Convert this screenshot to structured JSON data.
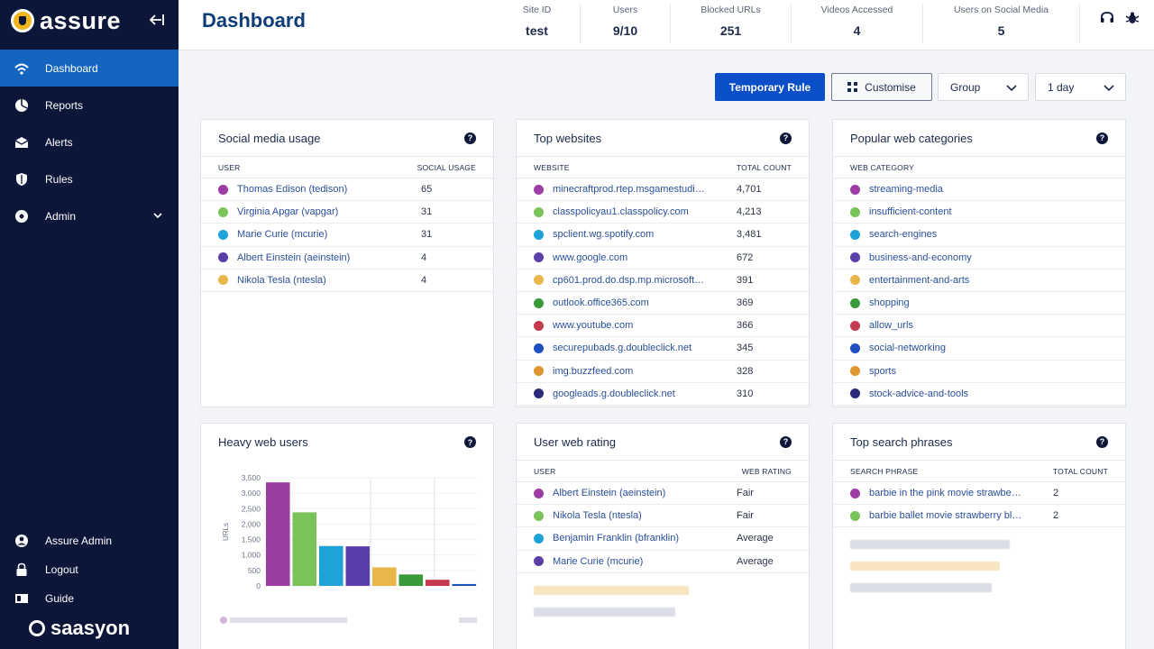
{
  "brand": {
    "name": "assure"
  },
  "footer_brand": "saasyon",
  "sidebar": {
    "items": [
      {
        "label": "Dashboard",
        "icon": "dashboard-icon"
      },
      {
        "label": "Reports",
        "icon": "pie-chart-icon"
      },
      {
        "label": "Alerts",
        "icon": "mail-icon"
      },
      {
        "label": "Rules",
        "icon": "shield-icon"
      },
      {
        "label": "Admin",
        "icon": "gear-icon"
      }
    ],
    "bottom": [
      {
        "label": "Assure Admin",
        "icon": "user-icon"
      },
      {
        "label": "Logout",
        "icon": "lock-icon"
      },
      {
        "label": "Guide",
        "icon": "book-icon"
      }
    ]
  },
  "header": {
    "title": "Dashboard",
    "stats": [
      {
        "label": "Site ID",
        "value": "test"
      },
      {
        "label": "Users",
        "value": "9/10"
      },
      {
        "label": "Blocked URLs",
        "value": "251"
      },
      {
        "label": "Videos Accessed",
        "value": "4"
      },
      {
        "label": "Users on Social Media",
        "value": "5"
      }
    ]
  },
  "controls": {
    "temporary_rule": "Temporary Rule",
    "customise": "Customise",
    "group": "Group",
    "period": "1 day"
  },
  "colors": {
    "purple": "#9b3da3",
    "green": "#7bc25a",
    "cyan": "#1ea3d9",
    "indigo": "#5b3fa8",
    "yellow": "#e8b64a",
    "darkgreen": "#3a9a3a",
    "red": "#c43a4e",
    "blue": "#1f4fc0",
    "orange": "#e0962e",
    "navy": "#2a2a7a"
  },
  "social": {
    "title": "Social media usage",
    "col1": "USER",
    "col2": "SOCIAL USAGE",
    "rows": [
      {
        "label": "Thomas Edison (tedison)",
        "value": "65",
        "color": "#9b3da3"
      },
      {
        "label": "Virginia Apgar (vapgar)",
        "value": "31",
        "color": "#7bc25a"
      },
      {
        "label": "Marie Curie (mcurie)",
        "value": "31",
        "color": "#1ea3d9"
      },
      {
        "label": "Albert Einstein (aeinstein)",
        "value": "4",
        "color": "#5b3fa8"
      },
      {
        "label": "Nikola Tesla (ntesla)",
        "value": "4",
        "color": "#e8b64a"
      }
    ]
  },
  "websites": {
    "title": "Top websites",
    "col1": "WEBSITE",
    "col2": "TOTAL COUNT",
    "rows": [
      {
        "label": "minecraftprod.rtep.msgamestudi…",
        "value": "4,701",
        "color": "#9b3da3"
      },
      {
        "label": "classpolicyau1.classpolicy.com",
        "value": "4,213",
        "color": "#7bc25a"
      },
      {
        "label": "spclient.wg.spotify.com",
        "value": "3,481",
        "color": "#1ea3d9"
      },
      {
        "label": "www.google.com",
        "value": "672",
        "color": "#5b3fa8"
      },
      {
        "label": "cp601.prod.do.dsp.mp.microsoft…",
        "value": "391",
        "color": "#e8b64a"
      },
      {
        "label": "outlook.office365.com",
        "value": "369",
        "color": "#3a9a3a"
      },
      {
        "label": "www.youtube.com",
        "value": "366",
        "color": "#c43a4e"
      },
      {
        "label": "securepubads.g.doubleclick.net",
        "value": "345",
        "color": "#1f4fc0"
      },
      {
        "label": "img.buzzfeed.com",
        "value": "328",
        "color": "#e0962e"
      },
      {
        "label": "googleads.g.doubleclick.net",
        "value": "310",
        "color": "#2a2a7a"
      }
    ]
  },
  "categories": {
    "title": "Popular web categories",
    "col1": "WEB CATEGORY",
    "rows": [
      {
        "label": "streaming-media",
        "color": "#9b3da3"
      },
      {
        "label": "insufficient-content",
        "color": "#7bc25a"
      },
      {
        "label": "search-engines",
        "color": "#1ea3d9"
      },
      {
        "label": "business-and-economy",
        "color": "#5b3fa8"
      },
      {
        "label": "entertainment-and-arts",
        "color": "#e8b64a"
      },
      {
        "label": "shopping",
        "color": "#3a9a3a"
      },
      {
        "label": "allow_urls",
        "color": "#c43a4e"
      },
      {
        "label": "social-networking",
        "color": "#1f4fc0"
      },
      {
        "label": "sports",
        "color": "#e0962e"
      },
      {
        "label": "stock-advice-and-tools",
        "color": "#2a2a7a"
      }
    ]
  },
  "heavy": {
    "title": "Heavy web users",
    "ylabel": "URLs"
  },
  "chart_data": {
    "type": "bar",
    "title": "Heavy web users",
    "ylabel": "URLs",
    "ylim": [
      0,
      3500
    ],
    "yticks": [
      "3,500",
      "3,000",
      "2,500",
      "2,000",
      "1,500",
      "1,000",
      "500",
      "0"
    ],
    "values": [
      3350,
      2380,
      1290,
      1280,
      600,
      370,
      200,
      60
    ],
    "colors": [
      "#9b3da3",
      "#7bc25a",
      "#1ea3d9",
      "#5b3fa8",
      "#e8b64a",
      "#3a9a3a",
      "#c43a4e",
      "#1f4fc0"
    ]
  },
  "rating": {
    "title": "User web rating",
    "col1": "USER",
    "col2": "WEB RATING",
    "rows": [
      {
        "label": "Albert Einstein (aeinstein)",
        "value": "Fair",
        "color": "#9b3da3"
      },
      {
        "label": "Nikola Tesla (ntesla)",
        "value": "Fair",
        "color": "#7bc25a"
      },
      {
        "label": "Benjamin Franklin (bfranklin)",
        "value": "Average",
        "color": "#1ea3d9"
      },
      {
        "label": "Marie Curie (mcurie)",
        "value": "Average",
        "color": "#5b3fa8"
      }
    ]
  },
  "search": {
    "title": "Top search phrases",
    "col1": "SEARCH PHRASE",
    "col2": "TOTAL COUNT",
    "rows": [
      {
        "label": "barbie in the pink movie strawbe…",
        "value": "2",
        "color": "#9b3da3"
      },
      {
        "label": "barbie ballet movie strawberry bl…",
        "value": "2",
        "color": "#7bc25a"
      }
    ]
  }
}
